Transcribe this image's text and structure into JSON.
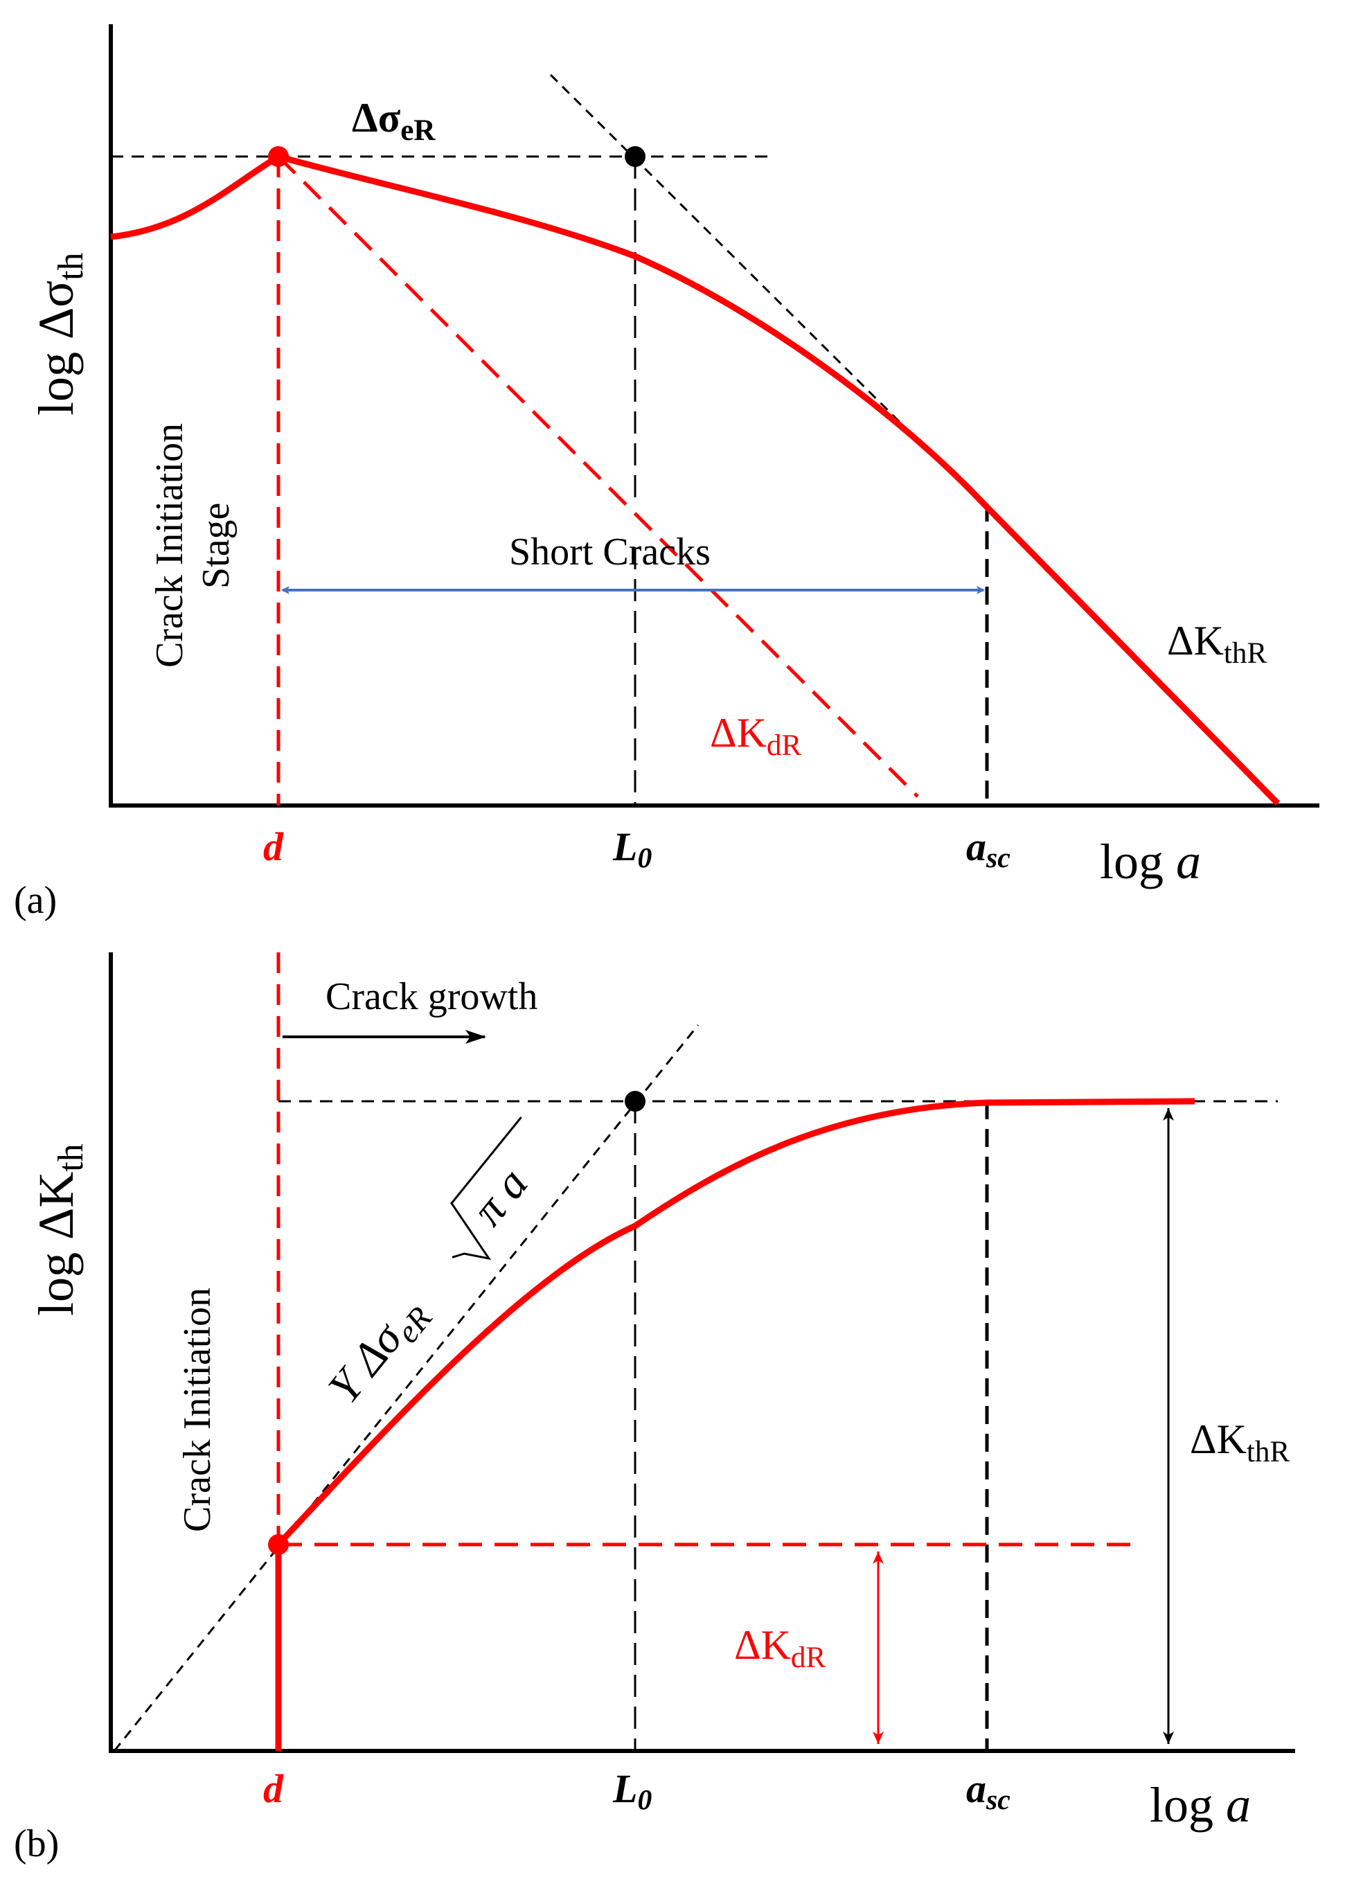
{
  "panel_a": {
    "panel_label": "(a)",
    "y_axis_label": {
      "main": "log Δσ",
      "sub": "th"
    },
    "x_axis_label": {
      "main": "log ",
      "var": "a"
    },
    "tick_d": "d",
    "tick_L0": {
      "main": "L",
      "sub": "0"
    },
    "tick_asc": {
      "main": "a",
      "sub": "sc"
    },
    "label_delta_sigma_eR": {
      "main": "Δσ",
      "sub": "eR"
    },
    "label_short_cracks": "Short Cracks",
    "label_crack_initiation_line1": "Crack Initiation",
    "label_crack_initiation_line2": "Stage",
    "label_delta_K_dR": {
      "main": "ΔK",
      "sub": "dR"
    },
    "label_delta_K_thR": {
      "main": "ΔK",
      "sub": "thR"
    }
  },
  "panel_b": {
    "panel_label": "(b)",
    "y_axis_label": {
      "main": "log ΔK",
      "sub": "th"
    },
    "x_axis_label": {
      "main": "log ",
      "var": "a"
    },
    "tick_d": "d",
    "tick_L0": {
      "main": "L",
      "sub": "0"
    },
    "tick_asc": {
      "main": "a",
      "sub": "sc"
    },
    "label_crack_growth": "Crack growth",
    "label_crack_initiation": "Crack Initiation",
    "label_formula": {
      "prefix": "Y Δσ",
      "sub": "eR",
      "radicand": "π a"
    },
    "label_delta_K_dR": {
      "main": "ΔK",
      "sub": "dR"
    },
    "label_delta_K_thR": {
      "main": "ΔK",
      "sub": "thR"
    }
  },
  "colors": {
    "curve": "#ff0000",
    "arrow_blue": "#4472c4",
    "axis": "#000000",
    "dashed_black": "#000000"
  }
}
